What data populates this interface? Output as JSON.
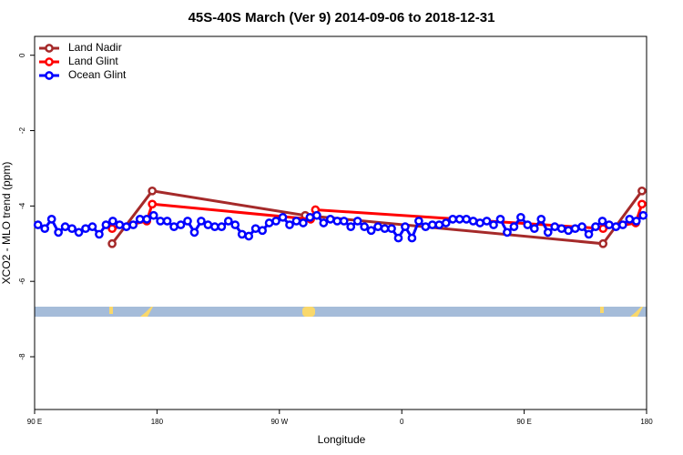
{
  "chart_data": {
    "type": "line",
    "title": "45S-40S March (Ver 9)   2014-09-06 to 2018-12-31",
    "xlabel": "Longitude",
    "ylabel": "XCO2 - MLO trend (ppm)",
    "xlim": [
      90,
      540
    ],
    "ylim": [
      -9.4,
      0.5
    ],
    "xticks": [
      {
        "value": 90,
        "label": "90 E"
      },
      {
        "value": 180,
        "label": "180"
      },
      {
        "value": 270,
        "label": "90 W"
      },
      {
        "value": 360,
        "label": "0"
      },
      {
        "value": 450,
        "label": "90 E"
      },
      {
        "value": 540,
        "label": "180"
      }
    ],
    "yticks": [
      0,
      -2,
      -4,
      -6,
      -8
    ],
    "legend": "top-left",
    "series": [
      {
        "name": "Land Nadir",
        "color": "#a52a2a",
        "x": [
          147,
          176.5,
          289,
          508,
          536.6
        ],
        "values": [
          -5.0,
          -3.6,
          -4.25,
          -5.0,
          -3.6
        ]
      },
      {
        "name": "Land Glint",
        "color": "#ff0000",
        "x": [
          147,
          172.5,
          176.5,
          293,
          296.5,
          508,
          532,
          536.6
        ],
        "values": [
          -4.6,
          -4.4,
          -3.95,
          -4.35,
          -4.1,
          -4.6,
          -4.45,
          -3.95
        ]
      },
      {
        "name": "Ocean Glint",
        "color": "#0000ff",
        "x": [
          92.5,
          97.5,
          102.5,
          107.5,
          112.5,
          117.5,
          122.5,
          127.5,
          132.5,
          137.5,
          142.5,
          147.5,
          152.5,
          157.5,
          162.5,
          167.5,
          172.5,
          177.5,
          182.5,
          187.5,
          192.5,
          197.5,
          202.5,
          207.5,
          212.5,
          217.5,
          222.5,
          227.5,
          232.5,
          237.5,
          242.5,
          247.5,
          252.5,
          257.5,
          262.5,
          267.5,
          272.5,
          277.5,
          282.5,
          287.5,
          292.5,
          297.5,
          302.5,
          307.5,
          312.5,
          317.5,
          322.5,
          327.5,
          332.5,
          337.5,
          342.5,
          347.5,
          352.5,
          357.5,
          362.5,
          367.5,
          372.5,
          377.5,
          382.5,
          387.5,
          392.5,
          397.5,
          402.5,
          407.5,
          412.5,
          417.5,
          422.5,
          427.5,
          432.5,
          437.5,
          442.5,
          447.5,
          452.5,
          457.5,
          462.5,
          467.5,
          472.5,
          477.5,
          482.5,
          487.5,
          492.5,
          497.5,
          502.5,
          507.5,
          512.5,
          517.5,
          522.5,
          527.5,
          532.5,
          537.5
        ],
        "values": [
          -4.5,
          -4.6,
          -4.35,
          -4.7,
          -4.55,
          -4.6,
          -4.7,
          -4.6,
          -4.55,
          -4.75,
          -4.5,
          -4.4,
          -4.5,
          -4.55,
          -4.5,
          -4.35,
          -4.35,
          -4.25,
          -4.4,
          -4.4,
          -4.55,
          -4.5,
          -4.4,
          -4.7,
          -4.4,
          -4.5,
          -4.55,
          -4.55,
          -4.4,
          -4.5,
          -4.75,
          -4.8,
          -4.6,
          -4.65,
          -4.45,
          -4.4,
          -4.3,
          -4.5,
          -4.4,
          -4.45,
          -4.3,
          -4.25,
          -4.45,
          -4.35,
          -4.4,
          -4.4,
          -4.55,
          -4.4,
          -4.55,
          -4.65,
          -4.55,
          -4.6,
          -4.6,
          -4.85,
          -4.55,
          -4.85,
          -4.4,
          -4.55,
          -4.5,
          -4.5,
          -4.45,
          -4.35,
          -4.35,
          -4.35,
          -4.4,
          -4.45,
          -4.4,
          -4.5,
          -4.35,
          -4.7,
          -4.55,
          -4.3,
          -4.5,
          -4.6,
          -4.35,
          -4.7,
          -4.55,
          -4.6,
          -4.65,
          -4.6,
          -4.55,
          -4.75,
          -4.55,
          -4.4,
          -4.5,
          -4.55,
          -4.5,
          -4.35,
          -4.4,
          -4.25
        ]
      }
    ]
  }
}
